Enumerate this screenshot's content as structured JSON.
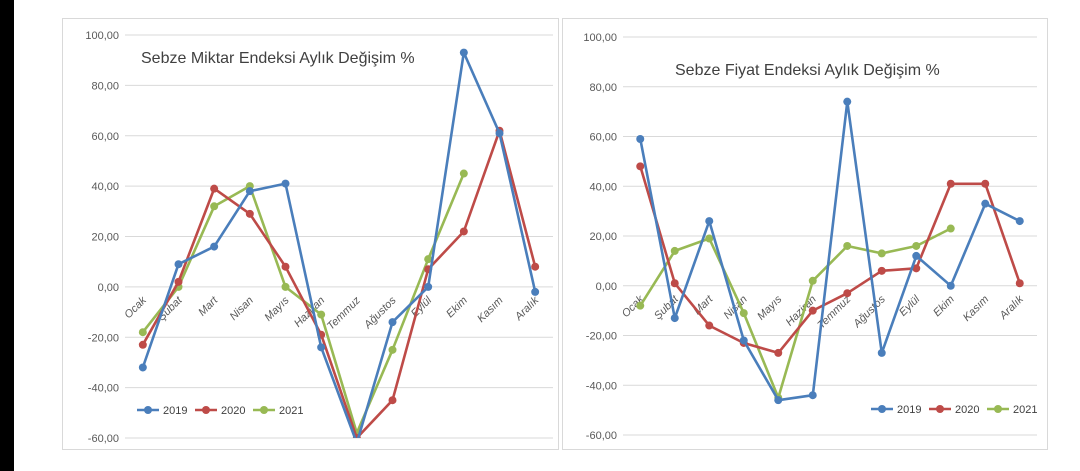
{
  "colors": {
    "2019": "#4a7ebb",
    "2020": "#be4b48",
    "2021": "#98b954"
  },
  "chart_data": [
    {
      "type": "line",
      "title": "Sebze Miktar Endeksi Aylık Değişim %",
      "xlabel": "",
      "ylabel": "",
      "ylim": [
        -60,
        100
      ],
      "y_ticks": [
        "100,00",
        "80,00",
        "60,00",
        "40,00",
        "20,00",
        "0,00",
        "-20,00",
        "-40,00",
        "-60,00"
      ],
      "grid": true,
      "legend_position": "bottom-left",
      "categories": [
        "Ocak",
        "Şubat",
        "Mart",
        "Nisan",
        "Mayıs",
        "Haziran",
        "Temmuz",
        "Ağustos",
        "Eylül",
        "Ekim",
        "Kasım",
        "Aralık"
      ],
      "series": [
        {
          "name": "2019",
          "values": [
            -32,
            9,
            16,
            38,
            41,
            -24,
            -62,
            -14,
            0,
            93,
            61,
            -2
          ]
        },
        {
          "name": "2020",
          "values": [
            -23,
            2,
            39,
            29,
            8,
            -19,
            -60,
            -45,
            7,
            22,
            62,
            8
          ]
        },
        {
          "name": "2021",
          "values": [
            -18,
            0,
            32,
            40,
            0,
            -11,
            -58,
            -25,
            11,
            45,
            null,
            null
          ]
        }
      ]
    },
    {
      "type": "line",
      "title": "Sebze Fiyat Endeksi Aylık Değişim %",
      "xlabel": "",
      "ylabel": "",
      "ylim": [
        -60,
        100
      ],
      "y_ticks": [
        "100,00",
        "80,00",
        "60,00",
        "40,00",
        "20,00",
        "0,00",
        "-20,00",
        "-40,00",
        "-60,00"
      ],
      "grid": true,
      "legend_position": "bottom-right",
      "categories": [
        "Ocak",
        "Şubat",
        "Mart",
        "Nisan",
        "Mayıs",
        "Haziran",
        "Temmuz",
        "Ağustos",
        "Eylül",
        "Ekim",
        "Kasım",
        "Aralık"
      ],
      "series": [
        {
          "name": "2019",
          "values": [
            59,
            -13,
            26,
            -22,
            -46,
            -44,
            74,
            -27,
            12,
            0,
            33,
            26
          ]
        },
        {
          "name": "2020",
          "values": [
            48,
            1,
            -16,
            -23,
            -27,
            -10,
            -3,
            6,
            7,
            41,
            41,
            1
          ]
        },
        {
          "name": "2021",
          "values": [
            -8,
            14,
            19,
            -11,
            -45,
            2,
            16,
            13,
            16,
            23,
            null,
            null
          ]
        }
      ]
    }
  ]
}
